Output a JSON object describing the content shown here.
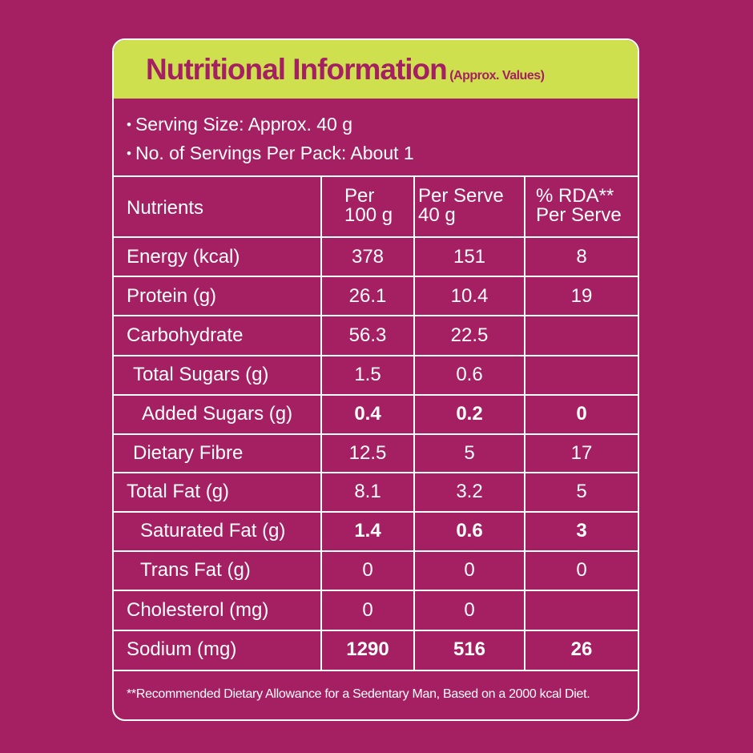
{
  "title": {
    "main": "Nutritional Information",
    "sub": "(Approx. Values)"
  },
  "serving": {
    "bullet": "•",
    "size": "Serving Size: Approx. 40 g",
    "count": "No. of Servings Per Pack: About 1"
  },
  "table": {
    "headers": {
      "nutrients": "Nutrients",
      "per100_line1": "Per",
      "per100_line2": "100 g",
      "perServe_line1": "Per Serve",
      "perServe_line2": "40 g",
      "rda_line1": "% RDA**",
      "rda_line2": "Per Serve"
    },
    "rows": [
      {
        "name": "Energy (kcal)",
        "per100": "378",
        "perServe": "151",
        "rda": "8"
      },
      {
        "name": "Protein (g)",
        "per100": "26.1",
        "perServe": "10.4",
        "rda": "19"
      },
      {
        "name": "Carbohydrate",
        "per100": "56.3",
        "perServe": "22.5",
        "rda": ""
      },
      {
        "name": "Total Sugars (g)",
        "per100": "1.5",
        "perServe": "0.6",
        "rda": ""
      },
      {
        "name": "Added Sugars (g)",
        "per100": "0.4",
        "perServe": "0.2",
        "rda": "0"
      },
      {
        "name": "Dietary Fibre",
        "per100": "12.5",
        "perServe": "5",
        "rda": "17"
      },
      {
        "name": "Total Fat (g)",
        "per100": "8.1",
        "perServe": "3.2",
        "rda": "5"
      },
      {
        "name": "Saturated Fat (g)",
        "per100": "1.4",
        "perServe": "0.6",
        "rda": "3"
      },
      {
        "name": "Trans Fat (g)",
        "per100": "0",
        "perServe": "0",
        "rda": "0"
      },
      {
        "name": "Cholesterol (mg)",
        "per100": "0",
        "perServe": "0",
        "rda": ""
      },
      {
        "name": "Sodium (mg)",
        "per100": "1290",
        "perServe": "516",
        "rda": "26"
      }
    ]
  },
  "footnote": "**Recommended Dietary Allowance for a Sedentary Man, Based on a 2000 kcal Diet.",
  "colors": {
    "background": "#a51f63",
    "title_band": "#cfe04e",
    "title_text": "#a51f63",
    "text": "#ffffff"
  }
}
